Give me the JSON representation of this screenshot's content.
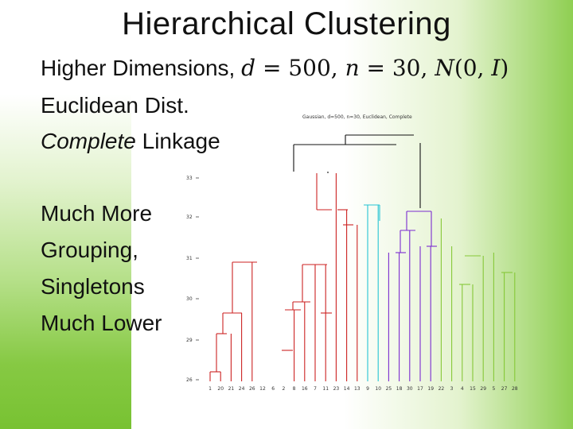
{
  "slide": {
    "title": "Hierarchical Clustering",
    "line1_prefix": "Higher Dimensions, ",
    "d_var": "d",
    "d_eq": " = 500, ",
    "n_var": "n",
    "n_eq": " = 30, ",
    "N_var": "N",
    "N_args_open": "(0, ",
    "I_var": "I",
    "N_args_close": ")",
    "line2": "Euclidean Dist.",
    "line3_italic": "Complete",
    "line3_rest": " Linkage",
    "line4": "Much More",
    "line5": "Grouping,",
    "line6": "Singletons",
    "line7": "Much Lower"
  },
  "plot": {
    "title": "Gaussian, d=500, n=30, Euclidean, Complete",
    "y_ticks": [
      "26",
      "29",
      "30",
      "31",
      "32",
      "33"
    ],
    "x_labels": [
      "1",
      "20",
      "21",
      "24",
      "26",
      "12",
      "6",
      "2",
      "8",
      "16",
      "7",
      "11",
      "23",
      "14",
      "13",
      "9",
      "10",
      "25",
      "18",
      "30",
      "17",
      "19",
      "22",
      "3",
      "4",
      "15",
      "29",
      "5",
      "27",
      "28"
    ],
    "colors": {
      "red": "#cc2222",
      "cyan": "#27c4d4",
      "purple": "#7a2bd0",
      "green": "#86c838",
      "black": "#111111"
    }
  }
}
